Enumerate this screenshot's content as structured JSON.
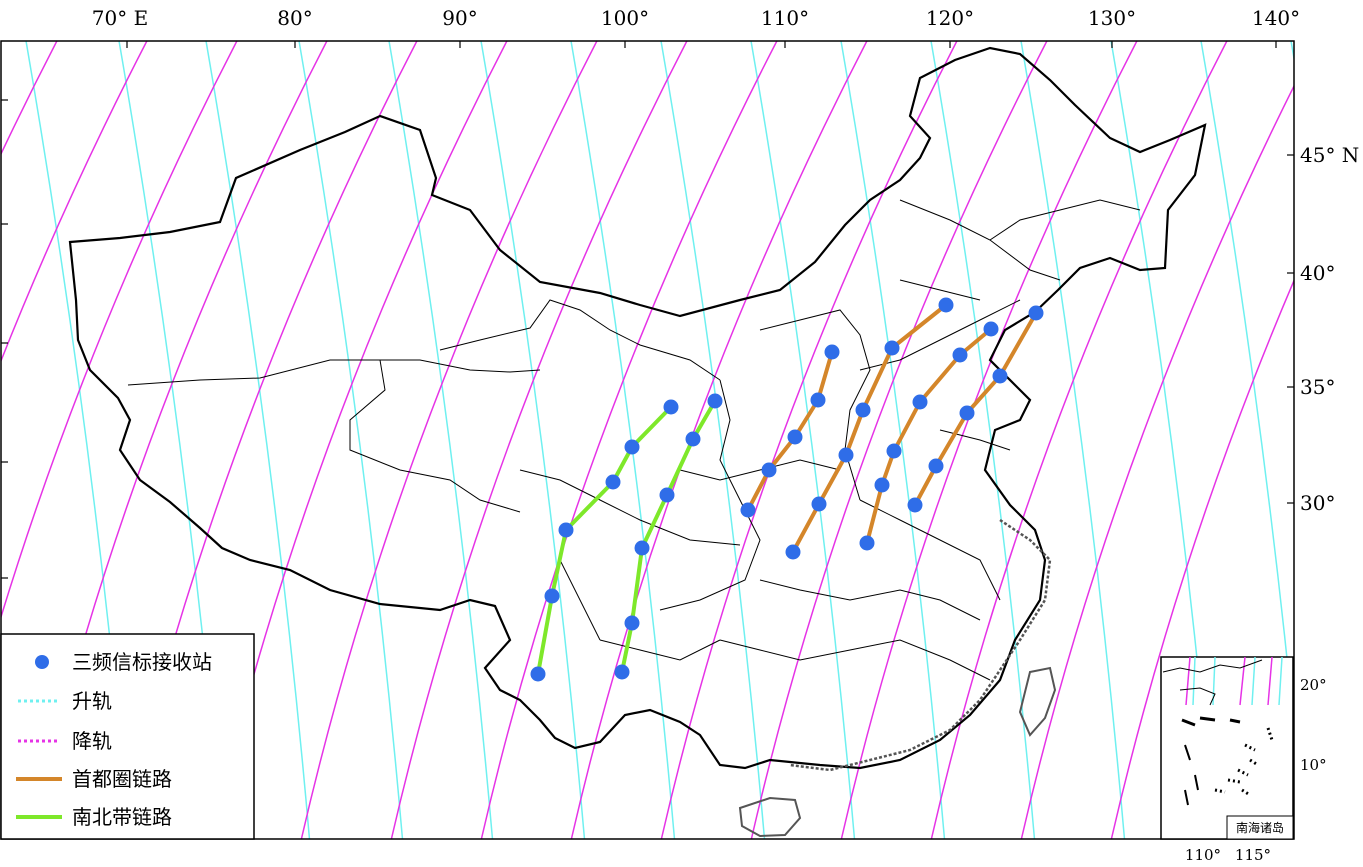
{
  "map": {
    "lon_labels": [
      "70° E",
      "80°",
      "90°",
      "100°",
      "110°",
      "120°",
      "130°",
      "140°"
    ],
    "lat_labels": [
      "45° N",
      "40°",
      "35°",
      "30°"
    ],
    "colors": {
      "ascending": "#6ff0f0",
      "descending": "#e633e6",
      "capital_link": "#d4862a",
      "north_south_link": "#7ee82a",
      "station": "#2f6de8",
      "border": "#000000"
    },
    "capital_links": [
      [
        [
          748,
          510
        ],
        [
          769,
          470
        ],
        [
          795,
          437
        ],
        [
          818,
          400
        ],
        [
          832,
          352
        ]
      ],
      [
        [
          793,
          552
        ],
        [
          819,
          504
        ],
        [
          846,
          455
        ],
        [
          863,
          410
        ],
        [
          892,
          348
        ],
        [
          946,
          305
        ]
      ],
      [
        [
          867,
          543
        ],
        [
          882,
          485
        ],
        [
          894,
          451
        ],
        [
          920,
          402
        ],
        [
          960,
          355
        ],
        [
          991,
          329
        ]
      ],
      [
        [
          915,
          505
        ],
        [
          936,
          466
        ],
        [
          967,
          413
        ],
        [
          1000,
          376
        ],
        [
          1036,
          313
        ]
      ]
    ],
    "north_south_links": [
      [
        [
          538,
          674
        ],
        [
          552,
          596
        ],
        [
          566,
          530
        ],
        [
          613,
          482
        ],
        [
          632,
          447
        ],
        [
          671,
          407
        ]
      ],
      [
        [
          622,
          672
        ],
        [
          632,
          623
        ],
        [
          642,
          548
        ],
        [
          667,
          495
        ],
        [
          693,
          439
        ],
        [
          715,
          401
        ]
      ]
    ]
  },
  "legend": {
    "items": [
      {
        "label": "三频信标接收站",
        "kind": "station"
      },
      {
        "label": "升轨",
        "kind": "ascending"
      },
      {
        "label": "降轨",
        "kind": "descending"
      },
      {
        "label": "首都圈链路",
        "kind": "capital_link"
      },
      {
        "label": "南北带链路",
        "kind": "north_south_link"
      }
    ]
  },
  "inset": {
    "title": "南海诸岛",
    "lat_labels": [
      "20°",
      "10°"
    ],
    "lon_labels": [
      "110°",
      "115°"
    ]
  }
}
